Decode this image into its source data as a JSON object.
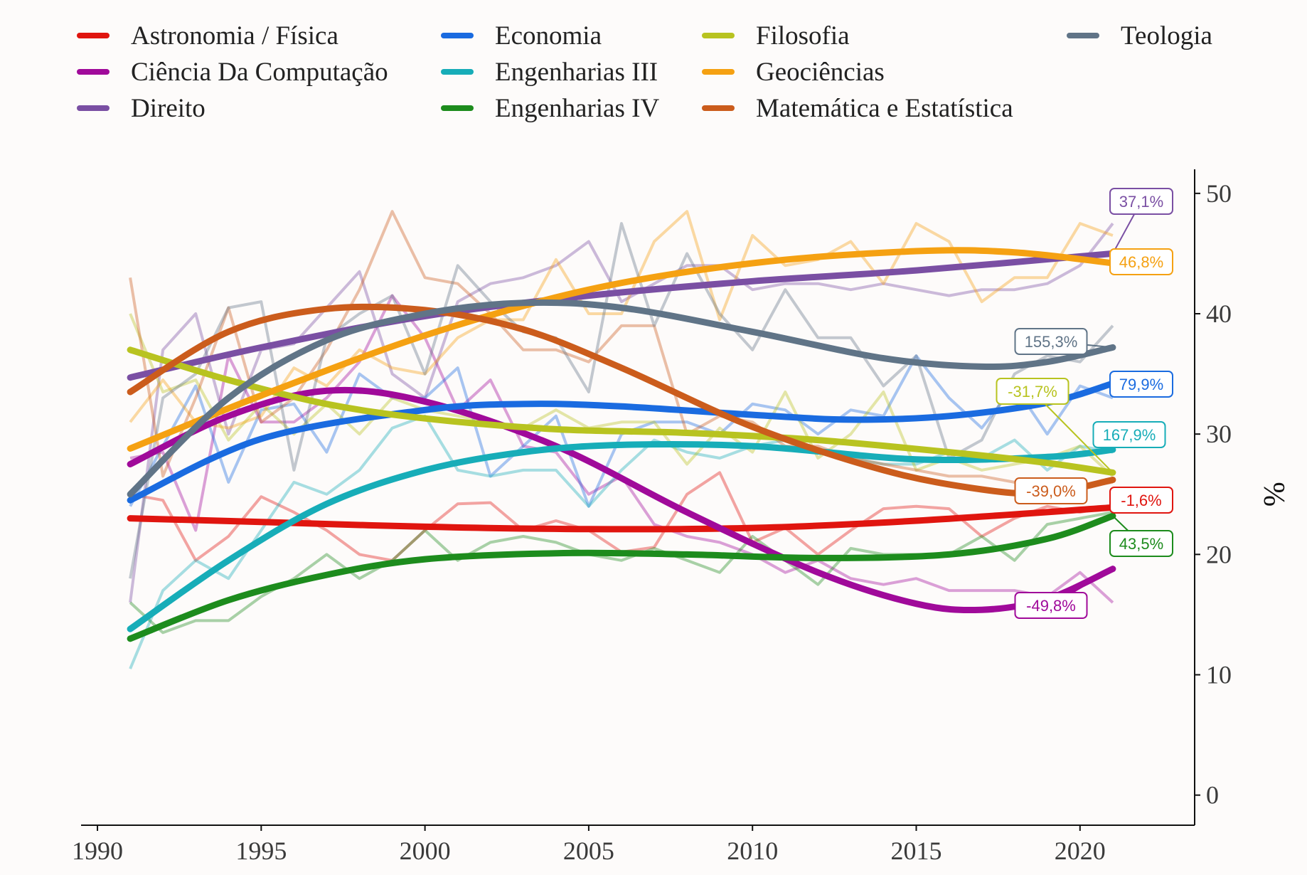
{
  "chart_data": {
    "type": "line",
    "title": "",
    "xlabel": "",
    "ylabel": "%",
    "xlim": [
      1989.5,
      2023.5
    ],
    "ylim": [
      -2.5,
      52
    ],
    "x_ticks": [
      1990,
      1995,
      2000,
      2005,
      2010,
      2015,
      2020
    ],
    "y_ticks": [
      0,
      10,
      20,
      30,
      40,
      50
    ],
    "x_tick_labels": [
      "1990",
      "1995",
      "2000",
      "2005",
      "2010",
      "2015",
      "2020"
    ],
    "y_tick_labels": [
      "0",
      "10",
      "20",
      "30",
      "40",
      "50"
    ],
    "grid": false,
    "legend_position": "top",
    "raw_x_start": 1991,
    "series": [
      {
        "name": "Astronomia / Física",
        "color": "#e0150f",
        "raw": [
          25.0,
          24.5,
          19.5,
          21.5,
          24.8,
          23.5,
          22.0,
          20.0,
          19.5,
          22.0,
          24.2,
          24.3,
          22.0,
          22.8,
          22.0,
          20.2,
          20.6,
          25.0,
          26.8,
          21.0,
          22.2,
          20.0,
          22.0,
          23.8,
          24.0,
          23.8,
          21.5,
          23.0,
          24.0,
          23.5,
          24.0
        ],
        "trend_points": [
          [
            1991,
            23.0
          ],
          [
            1995,
            22.7
          ],
          [
            2000,
            22.3
          ],
          [
            2005,
            22.1
          ],
          [
            2010,
            22.2
          ],
          [
            2015,
            22.8
          ],
          [
            2021,
            23.9
          ]
        ],
        "label": "-1,6%",
        "label_anchor": [
          2021,
          23.9
        ]
      },
      {
        "name": "Ciência Da Computação",
        "color": "#a00a9a",
        "raw": [
          28.0,
          28.5,
          22.0,
          36.5,
          31.0,
          31.0,
          33.0,
          36.0,
          41.5,
          38.0,
          32.0,
          34.5,
          29.0,
          28.5,
          25.0,
          26.5,
          22.5,
          21.5,
          21.0,
          20.0,
          18.5,
          19.5,
          18.0,
          17.5,
          18.0,
          17.0,
          17.0,
          17.0,
          16.5,
          18.5,
          16.0
        ],
        "trend_points": [
          [
            1991,
            27.5
          ],
          [
            1994,
            31.5
          ],
          [
            1997,
            33.6
          ],
          [
            2000,
            32.7
          ],
          [
            2004,
            29.0
          ],
          [
            2008,
            23.5
          ],
          [
            2012,
            18.5
          ],
          [
            2015,
            15.9
          ],
          [
            2017,
            15.4
          ],
          [
            2019,
            16.3
          ],
          [
            2021,
            18.8
          ]
        ],
        "label": "-49,8%",
        "label_anchor": [
          2021,
          18.8
        ]
      },
      {
        "name": "Direito",
        "color": "#7a4fa3",
        "raw": [
          16.0,
          37.0,
          40.0,
          30.0,
          37.0,
          37.5,
          40.5,
          43.5,
          35.0,
          33.0,
          41.0,
          42.5,
          43.0,
          44.0,
          46.0,
          41.0,
          42.5,
          44.0,
          44.0,
          42.0,
          42.5,
          42.5,
          42.0,
          42.5,
          42.0,
          41.5,
          42.0,
          42.0,
          42.5,
          44.0,
          47.5
        ],
        "trend_points": [
          [
            1991,
            34.7
          ],
          [
            1995,
            37.2
          ],
          [
            2000,
            39.8
          ],
          [
            2005,
            41.5
          ],
          [
            2010,
            42.7
          ],
          [
            2015,
            43.6
          ],
          [
            2021,
            45.0
          ]
        ],
        "label": "37,1%",
        "label_anchor": [
          2021,
          45.0
        ]
      },
      {
        "name": "Economia",
        "color": "#1a6be0",
        "raw": [
          24.0,
          29.0,
          34.0,
          26.0,
          32.0,
          32.5,
          28.5,
          35.0,
          33.0,
          33.0,
          35.5,
          26.5,
          29.0,
          31.5,
          24.0,
          30.0,
          31.0,
          31.0,
          30.0,
          32.5,
          32.0,
          30.0,
          32.0,
          31.5,
          36.5,
          33.0,
          30.5,
          34.0,
          30.0,
          34.0,
          33.0
        ],
        "trend_points": [
          [
            1991,
            24.5
          ],
          [
            1995,
            29.6
          ],
          [
            2000,
            32.0
          ],
          [
            2003,
            32.5
          ],
          [
            2006,
            32.3
          ],
          [
            2010,
            31.6
          ],
          [
            2013,
            31.2
          ],
          [
            2016,
            31.5
          ],
          [
            2019,
            32.6
          ],
          [
            2021,
            34.2
          ]
        ],
        "label": "79,9%",
        "label_anchor": [
          2021,
          34.2
        ]
      },
      {
        "name": "Engenharias III",
        "color": "#17adb8",
        "raw": [
          10.5,
          17.0,
          19.5,
          18.0,
          22.0,
          26.0,
          25.0,
          27.0,
          30.5,
          31.5,
          27.0,
          26.5,
          27.0,
          27.0,
          24.0,
          27.0,
          29.5,
          28.5,
          28.0,
          29.0,
          29.5,
          28.5,
          28.0,
          27.5,
          27.5,
          28.5,
          28.0,
          29.5,
          27.0,
          29.0,
          28.5
        ],
        "trend_points": [
          [
            1991,
            13.8
          ],
          [
            1994,
            19.5
          ],
          [
            1997,
            24.2
          ],
          [
            2000,
            27.0
          ],
          [
            2003,
            28.5
          ],
          [
            2006,
            29.1
          ],
          [
            2010,
            29.0
          ],
          [
            2015,
            27.9
          ],
          [
            2019,
            28.1
          ],
          [
            2021,
            28.7
          ]
        ],
        "label": "167,9%",
        "label_anchor": [
          2021,
          28.7
        ]
      },
      {
        "name": "Engenharias IV",
        "color": "#1d8c1d",
        "raw": [
          16.0,
          13.5,
          14.5,
          14.5,
          16.5,
          18.0,
          20.0,
          18.0,
          19.5,
          22.0,
          19.5,
          21.0,
          21.5,
          21.0,
          20.0,
          19.5,
          20.5,
          19.5,
          18.5,
          21.5,
          19.5,
          17.5,
          20.5,
          20.0,
          20.0,
          20.0,
          21.5,
          19.5,
          22.5,
          23.0,
          23.5
        ],
        "trend_points": [
          [
            1991,
            13.0
          ],
          [
            1994,
            16.2
          ],
          [
            1997,
            18.3
          ],
          [
            2000,
            19.6
          ],
          [
            2004,
            20.1
          ],
          [
            2008,
            20.0
          ],
          [
            2012,
            19.7
          ],
          [
            2016,
            20.0
          ],
          [
            2019,
            21.3
          ],
          [
            2021,
            23.2
          ]
        ],
        "label": "43,5%",
        "label_anchor": [
          2021,
          23.2
        ]
      },
      {
        "name": "Filosofia",
        "color": "#b8c320",
        "raw": [
          40.0,
          33.5,
          34.5,
          29.5,
          32.5,
          30.0,
          32.5,
          30.0,
          33.0,
          32.0,
          31.5,
          31.0,
          30.5,
          32.0,
          30.5,
          31.0,
          31.0,
          27.5,
          30.5,
          28.5,
          33.5,
          28.0,
          30.0,
          33.5,
          27.0,
          28.0,
          27.0,
          27.5,
          28.0,
          29.0,
          26.5
        ],
        "trend_points": [
          [
            1991,
            37.0
          ],
          [
            1994,
            34.5
          ],
          [
            1997,
            32.5
          ],
          [
            2000,
            31.3
          ],
          [
            2004,
            30.4
          ],
          [
            2008,
            30.1
          ],
          [
            2012,
            29.5
          ],
          [
            2016,
            28.5
          ],
          [
            2019,
            27.6
          ],
          [
            2021,
            26.8
          ]
        ],
        "label": "-31,7%",
        "label_anchor": [
          2021,
          26.8
        ]
      },
      {
        "name": "Geociências",
        "color": "#f5a112",
        "raw": [
          31.0,
          34.5,
          31.0,
          30.5,
          31.5,
          35.5,
          34.0,
          37.0,
          35.5,
          35.0,
          38.0,
          39.5,
          39.5,
          44.5,
          40.0,
          40.0,
          46.0,
          48.5,
          39.5,
          46.5,
          44.0,
          44.5,
          46.0,
          42.5,
          47.5,
          46.0,
          41.0,
          43.0,
          43.0,
          47.5,
          46.5
        ],
        "trend_points": [
          [
            1991,
            28.8
          ],
          [
            1995,
            33.2
          ],
          [
            2000,
            38.2
          ],
          [
            2005,
            42.0
          ],
          [
            2010,
            44.2
          ],
          [
            2015,
            45.2
          ],
          [
            2018,
            45.1
          ],
          [
            2021,
            44.2
          ]
        ],
        "label": "46,8%",
        "label_anchor": [
          2021,
          44.2
        ]
      },
      {
        "name": "Matemática e Estatística",
        "color": "#cb5c1c",
        "raw": [
          43.0,
          26.5,
          33.0,
          40.5,
          31.0,
          33.0,
          37.0,
          42.0,
          48.5,
          43.0,
          42.5,
          40.0,
          37.0,
          37.0,
          36.0,
          39.0,
          39.0,
          30.0,
          31.5,
          31.0,
          29.0,
          29.0,
          28.0,
          27.5,
          27.0,
          26.5,
          26.5,
          26.0,
          26.0,
          25.5,
          26.0
        ],
        "trend_points": [
          [
            1991,
            33.5
          ],
          [
            1994,
            38.5
          ],
          [
            1997,
            40.4
          ],
          [
            2000,
            40.3
          ],
          [
            2003,
            38.7
          ],
          [
            2006,
            35.5
          ],
          [
            2010,
            30.6
          ],
          [
            2014,
            27.0
          ],
          [
            2017,
            25.4
          ],
          [
            2019,
            25.1
          ],
          [
            2021,
            26.2
          ]
        ],
        "label": "-39,0%",
        "label_anchor": [
          2021,
          26.2
        ]
      },
      {
        "name": "Teologia",
        "color": "#607487",
        "raw": [
          18.0,
          33.0,
          35.0,
          40.5,
          41.0,
          27.0,
          38.0,
          40.0,
          41.5,
          35.0,
          44.0,
          41.0,
          38.5,
          38.0,
          33.5,
          47.5,
          39.0,
          45.0,
          40.0,
          37.0,
          42.0,
          38.0,
          38.0,
          34.0,
          36.5,
          28.0,
          29.5,
          35.0,
          36.5,
          36.0,
          39.0
        ],
        "trend_points": [
          [
            1991,
            25.0
          ],
          [
            1994,
            33.0
          ],
          [
            1997,
            37.8
          ],
          [
            2000,
            40.0
          ],
          [
            2003,
            40.9
          ],
          [
            2006,
            40.5
          ],
          [
            2010,
            38.5
          ],
          [
            2014,
            36.3
          ],
          [
            2017,
            35.6
          ],
          [
            2019,
            36.0
          ],
          [
            2021,
            37.2
          ]
        ],
        "label": "155,3%",
        "label_anchor": [
          2021,
          37.2
        ]
      }
    ],
    "label_order": [
      "Direito",
      "Geociências",
      "Teologia",
      "Filosofia",
      "Economia",
      "Engenharias III",
      "Matemática e Estatística",
      "Astronomia / Física",
      "Engenharias IV",
      "Ciência Da Computação"
    ]
  }
}
